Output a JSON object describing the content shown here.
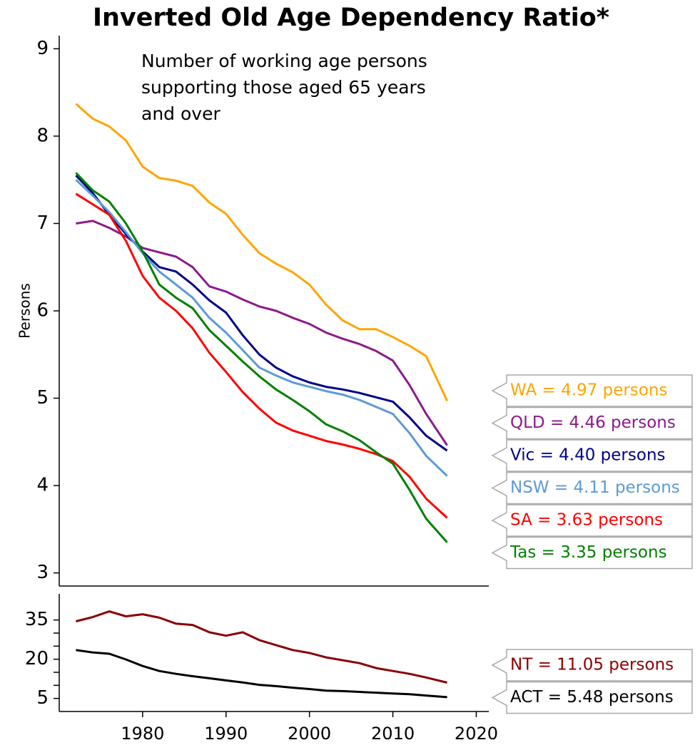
{
  "chart_data": [
    {
      "type": "line",
      "title": "Inverted Old Age Dependency Ratio*",
      "ylabel": "Persons",
      "annotation": [
        "Number of working age persons",
        "supporting those aged 65 years",
        "and over"
      ],
      "xlim": [
        1970,
        2021.5
      ],
      "ylim": [
        2.85,
        9.15
      ],
      "yticks": [
        3,
        4,
        5,
        6,
        7,
        8,
        9
      ],
      "x": [
        1972,
        1974,
        1976,
        1978,
        1980,
        1982,
        1984,
        1986,
        1988,
        1990,
        1992,
        1994,
        1996,
        1998,
        2000,
        2002,
        2004,
        2006,
        2008,
        2010,
        2012,
        2014,
        2016.5
      ],
      "series": [
        {
          "label": "WA = 4.97 persons",
          "color": "#ffa500",
          "values": [
            8.37,
            8.2,
            8.11,
            7.95,
            7.65,
            7.52,
            7.49,
            7.43,
            7.24,
            7.11,
            6.87,
            6.66,
            6.54,
            6.44,
            6.3,
            6.07,
            5.89,
            5.79,
            5.79,
            5.7,
            5.6,
            5.48,
            4.97
          ]
        },
        {
          "label": "QLD = 4.46 persons",
          "color": "#8b1a8b",
          "values": [
            7.0,
            7.03,
            6.95,
            6.85,
            6.72,
            6.67,
            6.62,
            6.5,
            6.28,
            6.22,
            6.13,
            6.05,
            6.0,
            5.92,
            5.85,
            5.75,
            5.68,
            5.62,
            5.54,
            5.43,
            5.15,
            4.82,
            4.46
          ]
        },
        {
          "label": "Vic = 4.40 persons",
          "color": "#00008b",
          "values": [
            7.55,
            7.35,
            7.1,
            6.88,
            6.68,
            6.5,
            6.45,
            6.3,
            6.12,
            5.98,
            5.72,
            5.5,
            5.35,
            5.25,
            5.18,
            5.13,
            5.1,
            5.06,
            5.01,
            4.96,
            4.78,
            4.57,
            4.4
          ]
        },
        {
          "label": "NSW = 4.11 persons",
          "color": "#5b9bd5",
          "values": [
            7.5,
            7.32,
            7.13,
            6.9,
            6.66,
            6.45,
            6.3,
            6.15,
            5.92,
            5.75,
            5.55,
            5.35,
            5.26,
            5.18,
            5.13,
            5.08,
            5.04,
            4.98,
            4.9,
            4.82,
            4.6,
            4.34,
            4.11
          ]
        },
        {
          "label": "SA = 3.63 persons",
          "color": "#ff0000",
          "values": [
            7.34,
            7.22,
            7.1,
            6.8,
            6.4,
            6.15,
            6.0,
            5.8,
            5.52,
            5.3,
            5.07,
            4.88,
            4.72,
            4.63,
            4.57,
            4.51,
            4.47,
            4.42,
            4.36,
            4.28,
            4.1,
            3.85,
            3.63
          ]
        },
        {
          "label": "Tas = 3.35 persons",
          "color": "#008000",
          "values": [
            7.58,
            7.38,
            7.25,
            7.0,
            6.68,
            6.3,
            6.15,
            6.03,
            5.78,
            5.6,
            5.42,
            5.25,
            5.1,
            4.98,
            4.85,
            4.7,
            4.62,
            4.52,
            4.38,
            4.25,
            3.95,
            3.62,
            3.35
          ]
        }
      ]
    },
    {
      "type": "line",
      "xlim": [
        1970,
        2021.5
      ],
      "xticks": [
        1980,
        1990,
        2000,
        2010,
        2020
      ],
      "ylim": [
        0,
        45
      ],
      "yticks": [
        5,
        20,
        35
      ],
      "yminorticks": [
        10,
        15,
        25,
        30
      ],
      "x": [
        1972,
        1974,
        1976,
        1978,
        1980,
        1982,
        1984,
        1986,
        1988,
        1990,
        1992,
        1994,
        1996,
        1998,
        2000,
        2002,
        2004,
        2006,
        2008,
        2010,
        2012,
        2014,
        2016.5
      ],
      "series": [
        {
          "label": "NT = 11.05 persons",
          "color": "#8b0000",
          "values": [
            34.5,
            36.1,
            38.3,
            36.4,
            37.2,
            35.9,
            33.6,
            33.1,
            30.3,
            29.0,
            30.3,
            27.3,
            25.4,
            23.5,
            22.4,
            20.7,
            19.6,
            18.5,
            16.6,
            15.5,
            14.4,
            13.0,
            11.05
          ]
        },
        {
          "label": "ACT = 5.48 persons",
          "color": "#000000",
          "values": [
            23.5,
            22.6,
            22.1,
            19.9,
            17.4,
            15.5,
            14.4,
            13.5,
            12.7,
            11.9,
            11.1,
            10.2,
            9.7,
            9.1,
            8.6,
            8.0,
            7.8,
            7.5,
            7.2,
            6.9,
            6.6,
            6.1,
            5.48
          ]
        }
      ]
    }
  ]
}
